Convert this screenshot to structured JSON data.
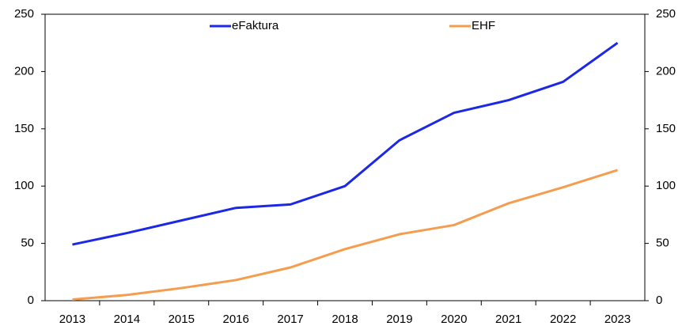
{
  "chart_data": {
    "type": "line",
    "categories": [
      "2013",
      "2014",
      "2015",
      "2016",
      "2017",
      "2018",
      "2019",
      "2020",
      "2021",
      "2022",
      "2023"
    ],
    "series": [
      {
        "name": "eFaktura",
        "color": "#1c28e6",
        "values": [
          49,
          59,
          70,
          81,
          84,
          100,
          140,
          164,
          175,
          191,
          225
        ]
      },
      {
        "name": "EHF",
        "color": "#f59d4f",
        "values": [
          1,
          5,
          11,
          18,
          29,
          45,
          58,
          66,
          85,
          99,
          114
        ]
      }
    ],
    "ylim": [
      0,
      250
    ],
    "yticks": [
      0,
      50,
      100,
      150,
      200,
      250
    ],
    "y2lim": [
      0,
      250
    ],
    "y2ticks": [
      0,
      50,
      100,
      150,
      200,
      250
    ],
    "grid": false
  }
}
